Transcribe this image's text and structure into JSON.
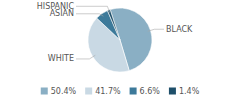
{
  "chart_data": {
    "type": "pie",
    "categories": [
      "BLACK",
      "WHITE",
      "ASIAN",
      "HISPANIC"
    ],
    "values": [
      50.4,
      41.7,
      6.6,
      1.4
    ],
    "value_labels": [
      "50.4%",
      "41.7%",
      "6.6%",
      "1.4%"
    ],
    "colors": [
      "#8AAFC4",
      "#C9D9E4",
      "#3D7A9A",
      "#1E4F6A"
    ],
    "legend": "bottom"
  }
}
